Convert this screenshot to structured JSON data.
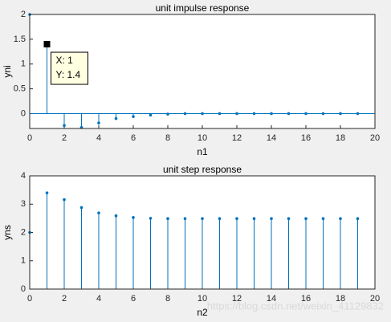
{
  "chart_data": [
    {
      "type": "stem",
      "title": "unit impulse response",
      "x_label": "n1",
      "y_label": "yni",
      "x": [
        0,
        1,
        2,
        3,
        4,
        5,
        6,
        7,
        8,
        9,
        10,
        11,
        12,
        13,
        14,
        15,
        16,
        17,
        18,
        19
      ],
      "values": [
        2,
        1.4,
        -0.24,
        -0.28,
        -0.19,
        -0.1,
        -0.06,
        -0.03,
        -0.01,
        0,
        0,
        0,
        0,
        0,
        0,
        0,
        0,
        0,
        0,
        0
      ],
      "color": "#0072bd",
      "xlim": [
        0,
        20
      ],
      "xticks": [
        0,
        2,
        4,
        6,
        8,
        10,
        12,
        14,
        16,
        18,
        20
      ],
      "ylim": [
        -0.3,
        2
      ],
      "yticks": [
        0,
        0.5,
        1,
        1.5,
        2
      ],
      "annotations": [
        "X: 1",
        "Y: 1.4"
      ]
    },
    {
      "type": "stem",
      "title": "unit step response",
      "x_label": "n2",
      "y_label": "yns",
      "x": [
        0,
        1,
        2,
        3,
        4,
        5,
        6,
        7,
        8,
        9,
        10,
        11,
        12,
        13,
        14,
        15,
        16,
        17,
        18,
        19
      ],
      "values": [
        2,
        3.4,
        3.16,
        2.88,
        2.69,
        2.59,
        2.53,
        2.5,
        2.49,
        2.49,
        2.49,
        2.49,
        2.49,
        2.49,
        2.49,
        2.49,
        2.49,
        2.49,
        2.49,
        2.49
      ],
      "color": "#0072bd",
      "xlim": [
        0,
        20
      ],
      "xticks": [
        0,
        2,
        4,
        6,
        8,
        10,
        12,
        14,
        16,
        18,
        20
      ],
      "ylim": [
        0,
        4
      ],
      "yticks": [
        0,
        1,
        2,
        3,
        4
      ]
    }
  ],
  "watermark": "https://blog.csdn.net/weixin_41129832"
}
